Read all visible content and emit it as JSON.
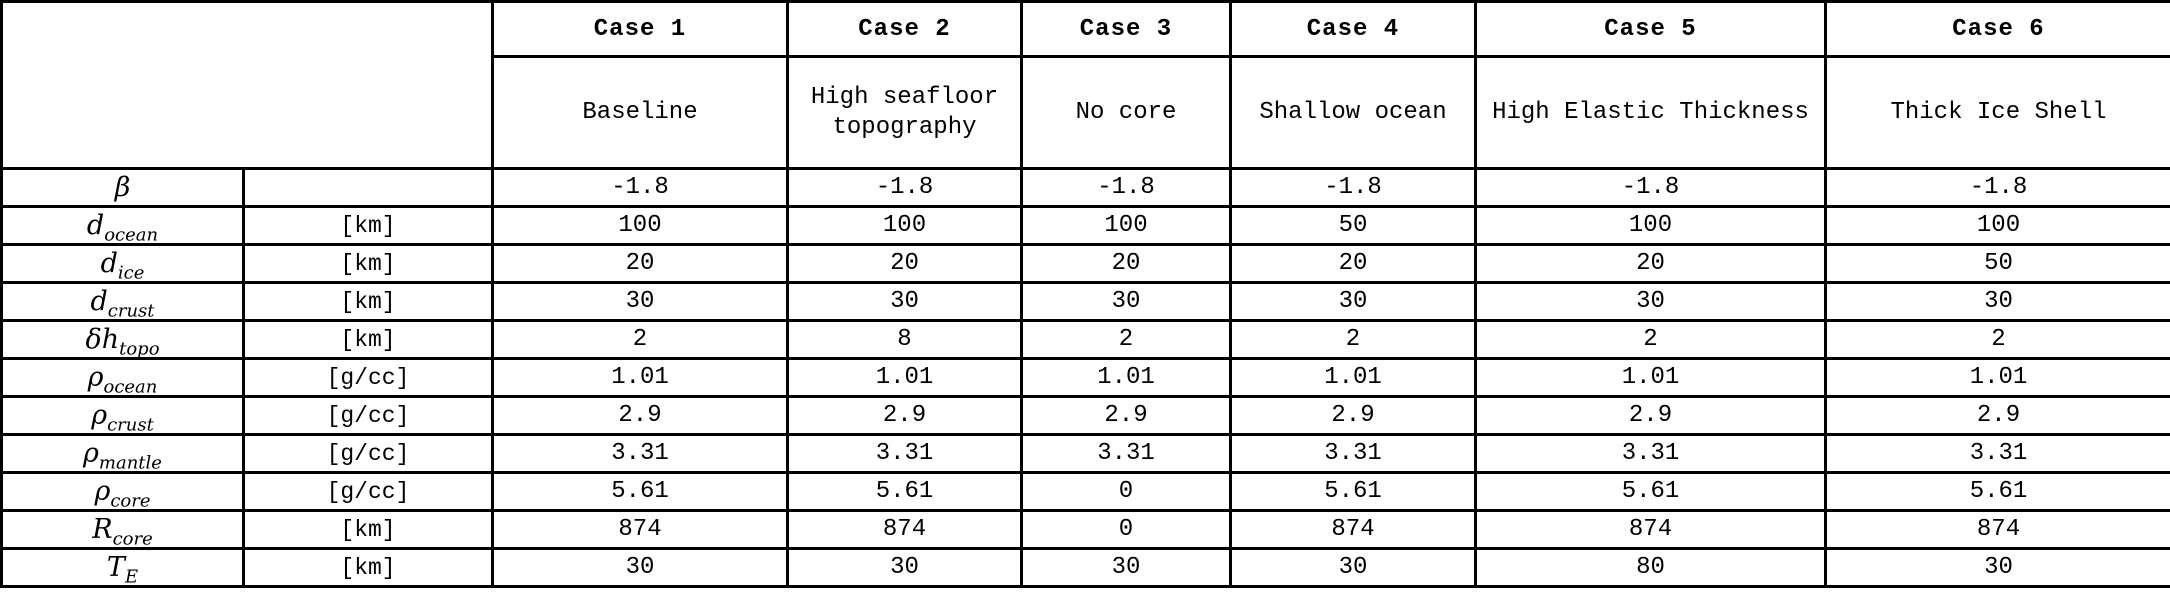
{
  "table": {
    "colors": {
      "highlight_green": "#C6E0B4",
      "shaded_gray": "#D9D9D9",
      "border_black": "#000000"
    },
    "columns": [
      {
        "label": "Case 1",
        "description": "Baseline"
      },
      {
        "label": "Case 2",
        "description": "High seafloor topography"
      },
      {
        "label": "Case 3",
        "description": "No core"
      },
      {
        "label": "Case 4",
        "description": "Shallow ocean"
      },
      {
        "label": "Case 5",
        "description": "High Elastic Thickness"
      },
      {
        "label": "Case 6",
        "description": "Thick Ice Shell"
      }
    ],
    "rows": [
      {
        "symbol_base": "β",
        "symbol_sub": "",
        "unit": "",
        "values": [
          "-1.8",
          "-1.8",
          "-1.8",
          "-1.8",
          "-1.8",
          "-1.8"
        ],
        "shaded": false,
        "highlight_col": null
      },
      {
        "symbol_base": "d",
        "symbol_sub": "ocean",
        "unit": "[km]",
        "values": [
          "100",
          "100",
          "100",
          "50",
          "100",
          "100"
        ],
        "shaded": false,
        "highlight_col": 3
      },
      {
        "symbol_base": "d",
        "symbol_sub": "ice",
        "unit": "[km]",
        "values": [
          "20",
          "20",
          "20",
          "20",
          "20",
          "50"
        ],
        "shaded": false,
        "highlight_col": 5
      },
      {
        "symbol_base": "d",
        "symbol_sub": "crust",
        "unit": "[km]",
        "values": [
          "30",
          "30",
          "30",
          "30",
          "30",
          "30"
        ],
        "shaded": true,
        "highlight_col": null
      },
      {
        "symbol_base": "δh",
        "symbol_sub": "topo",
        "unit": "[km]",
        "values": [
          "2",
          "8",
          "2",
          "2",
          "2",
          "2"
        ],
        "shaded": false,
        "highlight_col": 1
      },
      {
        "symbol_base": "ρ",
        "symbol_sub": "ocean",
        "unit": "[g/cc]",
        "values": [
          "1.01",
          "1.01",
          "1.01",
          "1.01",
          "1.01",
          "1.01"
        ],
        "shaded": true,
        "highlight_col": null
      },
      {
        "symbol_base": "ρ",
        "symbol_sub": "crust",
        "unit": "[g/cc]",
        "values": [
          "2.9",
          "2.9",
          "2.9",
          "2.9",
          "2.9",
          "2.9"
        ],
        "shaded": true,
        "highlight_col": null
      },
      {
        "symbol_base": "ρ",
        "symbol_sub": "mantle",
        "unit": "[g/cc]",
        "values": [
          "3.31",
          "3.31",
          "3.31",
          "3.31",
          "3.31",
          "3.31"
        ],
        "shaded": false,
        "highlight_col": null
      },
      {
        "symbol_base": "ρ",
        "symbol_sub": "core",
        "unit": "[g/cc]",
        "values": [
          "5.61",
          "5.61",
          "0",
          "5.61",
          "5.61",
          "5.61"
        ],
        "shaded": true,
        "highlight_col": null
      },
      {
        "symbol_base": "R",
        "symbol_sub": "core",
        "unit": "[km]",
        "values": [
          "874",
          "874",
          "0",
          "874",
          "874",
          "874"
        ],
        "shaded": false,
        "highlight_col": 2
      },
      {
        "symbol_base": "T",
        "symbol_sub": "E",
        "unit": "[km]",
        "values": [
          "30",
          "30",
          "30",
          "30",
          "80",
          "30"
        ],
        "shaded": false,
        "highlight_col": 4
      }
    ]
  }
}
